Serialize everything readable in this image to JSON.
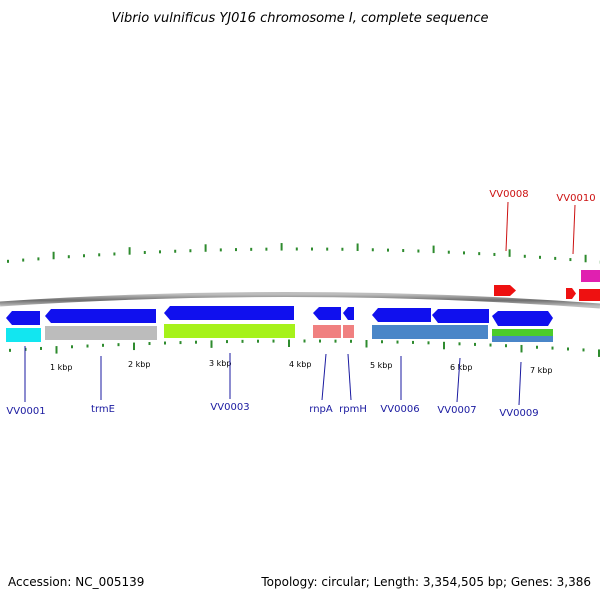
{
  "title": "Vibrio vulnificus YJ016 chromosome I, complete sequence",
  "footer": {
    "accession": "Accession: NC_005139",
    "summary": "Topology: circular; Length: 3,354,505 bp; Genes: 3,386"
  },
  "scale": {
    "tick_labels": [
      "1 kbp",
      "2 kbp",
      "3 kbp",
      "4 kbp",
      "5 kbp",
      "6 kbp",
      "7 kbp"
    ]
  },
  "colors": {
    "backbone": "#888888",
    "cds_blue": "#1010ee",
    "label_blue": "#1a1aa0",
    "label_red": "#cc1111",
    "tick_green": "#2e8b2e",
    "feature_red": "#ee1111",
    "feature_magenta": "#e020b0"
  },
  "genes_blue": [
    {
      "label": "VV0001"
    },
    {
      "label": "trmE"
    },
    {
      "label": "VV0003"
    },
    {
      "label": "rnpA"
    },
    {
      "label": "rpmH"
    },
    {
      "label": "VV0006"
    },
    {
      "label": "VV0007"
    },
    {
      "label": "VV0009"
    }
  ],
  "genes_red": [
    {
      "label": "VV0008"
    },
    {
      "label": "VV0010"
    }
  ]
}
